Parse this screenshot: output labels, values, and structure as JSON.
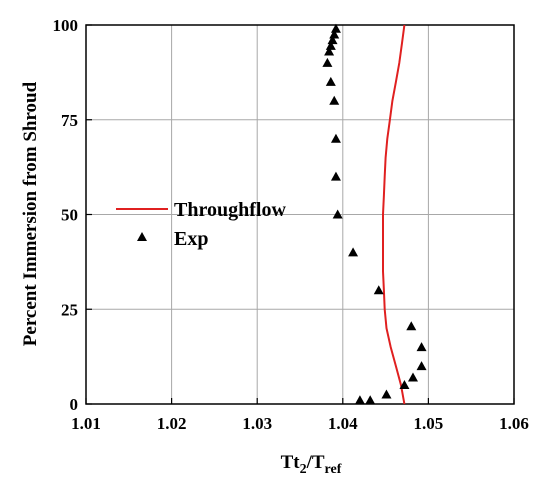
{
  "chart_data": {
    "type": "line",
    "title": "",
    "xlabel_main": "Tt",
    "xlabel_sub1": "2",
    "xlabel_mid": "/T",
    "xlabel_sub2": "ref",
    "ylabel": "Percent Immersion from Shroud",
    "xlim": [
      1.01,
      1.06
    ],
    "ylim": [
      0,
      100
    ],
    "x_ticks": [
      1.01,
      1.02,
      1.03,
      1.04,
      1.05,
      1.06
    ],
    "x_tick_labels": [
      "1.01",
      "1.02",
      "1.03",
      "1.04",
      "1.05",
      "1.06"
    ],
    "y_ticks": [
      0,
      25,
      50,
      75,
      100
    ],
    "y_tick_labels": [
      "0",
      "25",
      "50",
      "75",
      "100"
    ],
    "grid": true,
    "legend_position": "center-left",
    "series": [
      {
        "name": "Throughflow",
        "kind": "line",
        "color": "#e02020",
        "points": [
          [
            1.0472,
            0
          ],
          [
            1.0468,
            5
          ],
          [
            1.0462,
            10
          ],
          [
            1.0456,
            15
          ],
          [
            1.0451,
            20
          ],
          [
            1.0449,
            25
          ],
          [
            1.0448,
            30
          ],
          [
            1.0447,
            35
          ],
          [
            1.0447,
            40
          ],
          [
            1.0447,
            45
          ],
          [
            1.0447,
            50
          ],
          [
            1.0448,
            55
          ],
          [
            1.0449,
            60
          ],
          [
            1.045,
            65
          ],
          [
            1.0452,
            70
          ],
          [
            1.0455,
            75
          ],
          [
            1.0458,
            80
          ],
          [
            1.0462,
            85
          ],
          [
            1.0466,
            90
          ],
          [
            1.0469,
            95
          ],
          [
            1.0472,
            100
          ]
        ]
      },
      {
        "name": "Exp",
        "kind": "scatter",
        "marker": "triangle",
        "color": "#000000",
        "points": [
          [
            1.0392,
            99
          ],
          [
            1.039,
            97.5
          ],
          [
            1.0388,
            96
          ],
          [
            1.0386,
            94.5
          ],
          [
            1.0384,
            93
          ],
          [
            1.0382,
            90
          ],
          [
            1.0386,
            85
          ],
          [
            1.039,
            80
          ],
          [
            1.0392,
            70
          ],
          [
            1.0392,
            60
          ],
          [
            1.0394,
            50
          ],
          [
            1.0412,
            40
          ],
          [
            1.0442,
            30
          ],
          [
            1.048,
            20.5
          ],
          [
            1.0492,
            15
          ],
          [
            1.0492,
            10
          ],
          [
            1.0482,
            7
          ],
          [
            1.0472,
            5
          ],
          [
            1.0451,
            2.5
          ],
          [
            1.0432,
            1
          ],
          [
            1.042,
            1
          ]
        ]
      }
    ]
  }
}
